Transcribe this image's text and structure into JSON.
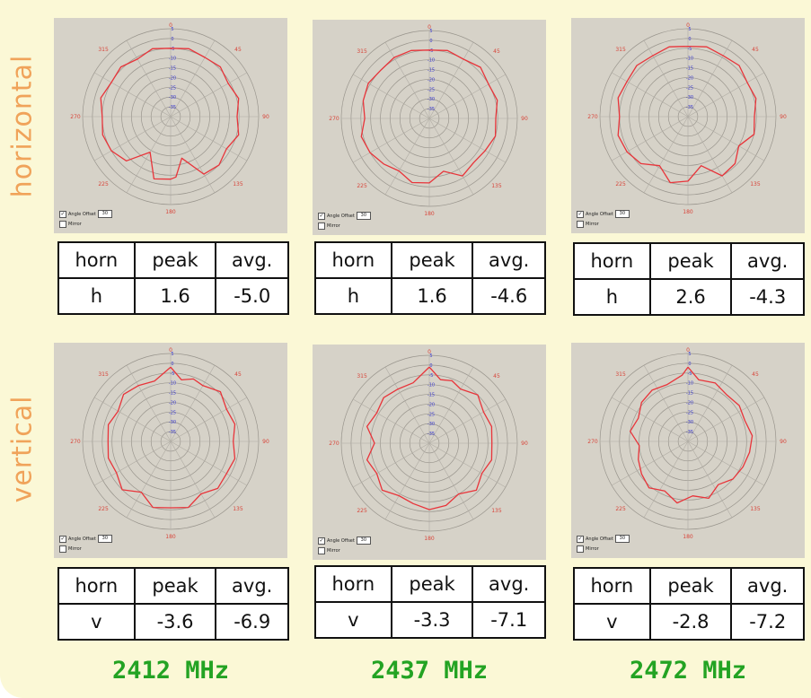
{
  "rows": {
    "horizontal": "horizontal",
    "vertical": "vertical"
  },
  "table_headers": [
    "horn",
    "peak",
    "avg."
  ],
  "colors": {
    "trace": "#e8343a",
    "axis_red": "#d8453a",
    "axis_blue": "#3a3ad0",
    "row_label": "#f0a35a",
    "freq": "#23a323"
  },
  "polar_common": {
    "angle_labels": [
      "0",
      "45",
      "90",
      "135",
      "180",
      "225",
      "270",
      "315"
    ],
    "radial_labels": [
      "5",
      "0",
      "-5",
      "-10",
      "-15",
      "-20",
      "-25",
      "-30",
      "-35"
    ],
    "angle_offset_label": "Angle Offset",
    "angle_offset_value": "30",
    "mirror_label": "Mirror"
  },
  "chart_data": [
    {
      "type": "polar",
      "frequency": "2412 MHz",
      "polarization": "horizontal",
      "r_range": [
        -40,
        5
      ],
      "trace": [
        [
          0,
          -5
        ],
        [
          15,
          -4
        ],
        [
          30,
          -5
        ],
        [
          45,
          -4
        ],
        [
          60,
          -6
        ],
        [
          75,
          -4
        ],
        [
          90,
          -6
        ],
        [
          105,
          -4
        ],
        [
          120,
          -7
        ],
        [
          135,
          -5
        ],
        [
          150,
          -6
        ],
        [
          165,
          -18
        ],
        [
          175,
          -9
        ],
        [
          180,
          -8
        ],
        [
          195,
          -7
        ],
        [
          210,
          -19
        ],
        [
          225,
          -8
        ],
        [
          240,
          -5
        ],
        [
          255,
          -4
        ],
        [
          270,
          -5
        ],
        [
          285,
          -3
        ],
        [
          300,
          -5
        ],
        [
          315,
          -4
        ],
        [
          330,
          -6
        ],
        [
          345,
          -4
        ]
      ],
      "table": {
        "horn": "h",
        "peak": "1.6",
        "avg": "-5.0"
      }
    },
    {
      "type": "polar",
      "frequency": "2437 MHz",
      "polarization": "horizontal",
      "r_range": [
        -40,
        5
      ],
      "trace": [
        [
          0,
          -5
        ],
        [
          15,
          -4
        ],
        [
          30,
          -5
        ],
        [
          45,
          -3
        ],
        [
          60,
          -5
        ],
        [
          75,
          -4
        ],
        [
          90,
          -6
        ],
        [
          105,
          -5
        ],
        [
          120,
          -7
        ],
        [
          135,
          -8
        ],
        [
          150,
          -6
        ],
        [
          165,
          -12
        ],
        [
          180,
          -7
        ],
        [
          195,
          -6
        ],
        [
          210,
          -9
        ],
        [
          225,
          -7
        ],
        [
          240,
          -5
        ],
        [
          255,
          -4
        ],
        [
          270,
          -7
        ],
        [
          285,
          -5
        ],
        [
          300,
          -4
        ],
        [
          315,
          -5
        ],
        [
          330,
          -4
        ],
        [
          345,
          -4
        ]
      ],
      "table": {
        "horn": "h",
        "peak": "1.6",
        "avg": "-4.6"
      }
    },
    {
      "type": "polar",
      "frequency": "2472 MHz",
      "polarization": "horizontal",
      "r_range": [
        -40,
        5
      ],
      "trace": [
        [
          0,
          -4
        ],
        [
          15,
          -3
        ],
        [
          30,
          -4
        ],
        [
          45,
          -3
        ],
        [
          60,
          -5
        ],
        [
          75,
          -4
        ],
        [
          90,
          -6
        ],
        [
          105,
          -5
        ],
        [
          120,
          -10
        ],
        [
          135,
          -6
        ],
        [
          150,
          -5
        ],
        [
          165,
          -14
        ],
        [
          180,
          -7
        ],
        [
          195,
          -5
        ],
        [
          210,
          -11
        ],
        [
          225,
          -6
        ],
        [
          240,
          -4
        ],
        [
          255,
          -3
        ],
        [
          270,
          -5
        ],
        [
          285,
          -3
        ],
        [
          300,
          -4
        ],
        [
          315,
          -3
        ],
        [
          330,
          -4
        ],
        [
          345,
          -3
        ]
      ],
      "table": {
        "horn": "h",
        "peak": "2.6",
        "avg": "-4.3"
      }
    },
    {
      "type": "polar",
      "frequency": "2412 MHz",
      "polarization": "vertical",
      "r_range": [
        -40,
        5
      ],
      "trace": [
        [
          0,
          -2
        ],
        [
          10,
          -8
        ],
        [
          20,
          -6
        ],
        [
          30,
          -7
        ],
        [
          45,
          -4
        ],
        [
          60,
          -7
        ],
        [
          75,
          -6
        ],
        [
          90,
          -8
        ],
        [
          105,
          -6
        ],
        [
          120,
          -7
        ],
        [
          135,
          -6
        ],
        [
          150,
          -9
        ],
        [
          165,
          -5
        ],
        [
          180,
          -6
        ],
        [
          195,
          -5
        ],
        [
          210,
          -10
        ],
        [
          225,
          -5
        ],
        [
          240,
          -8
        ],
        [
          255,
          -7
        ],
        [
          270,
          -8
        ],
        [
          285,
          -7
        ],
        [
          300,
          -9
        ],
        [
          315,
          -6
        ],
        [
          330,
          -7
        ],
        [
          345,
          -8
        ]
      ],
      "table": {
        "horn": "v",
        "peak": "-3.6",
        "avg": "-6.9"
      }
    },
    {
      "type": "polar",
      "frequency": "2437 MHz",
      "polarization": "vertical",
      "r_range": [
        -40,
        5
      ],
      "trace": [
        [
          0,
          -1
        ],
        [
          10,
          -7
        ],
        [
          20,
          -6
        ],
        [
          30,
          -8
        ],
        [
          45,
          -5
        ],
        [
          60,
          -8
        ],
        [
          75,
          -7
        ],
        [
          90,
          -8
        ],
        [
          105,
          -7
        ],
        [
          120,
          -9
        ],
        [
          135,
          -6
        ],
        [
          150,
          -10
        ],
        [
          165,
          -7
        ],
        [
          180,
          -6
        ],
        [
          195,
          -8
        ],
        [
          210,
          -9
        ],
        [
          225,
          -6
        ],
        [
          240,
          -9
        ],
        [
          255,
          -7
        ],
        [
          270,
          -12
        ],
        [
          285,
          -7
        ],
        [
          300,
          -9
        ],
        [
          315,
          -7
        ],
        [
          330,
          -8
        ],
        [
          345,
          -8
        ]
      ],
      "table": {
        "horn": "v",
        "peak": "-3.3",
        "avg": "-7.1"
      }
    },
    {
      "type": "polar",
      "frequency": "2472 MHz",
      "polarization": "vertical",
      "r_range": [
        -40,
        5
      ],
      "trace": [
        [
          0,
          -2
        ],
        [
          10,
          -8
        ],
        [
          25,
          -7
        ],
        [
          40,
          -9
        ],
        [
          55,
          -8
        ],
        [
          70,
          -9
        ],
        [
          85,
          -7
        ],
        [
          100,
          -8
        ],
        [
          115,
          -9
        ],
        [
          130,
          -10
        ],
        [
          145,
          -13
        ],
        [
          160,
          -9
        ],
        [
          175,
          -12
        ],
        [
          190,
          -8
        ],
        [
          205,
          -12
        ],
        [
          220,
          -9
        ],
        [
          235,
          -11
        ],
        [
          250,
          -13
        ],
        [
          265,
          -15
        ],
        [
          280,
          -10
        ],
        [
          295,
          -12
        ],
        [
          310,
          -9
        ],
        [
          325,
          -8
        ],
        [
          340,
          -9
        ],
        [
          355,
          -6
        ]
      ],
      "table": {
        "horn": "v",
        "peak": "-2.8",
        "avg": "-7.2"
      }
    }
  ]
}
